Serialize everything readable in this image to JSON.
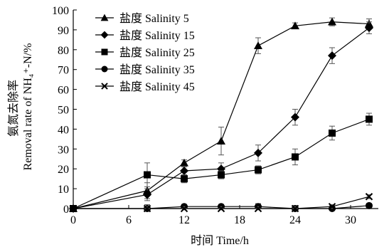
{
  "chart_data": {
    "type": "line",
    "title": "",
    "xlabel": "时间 Time/h",
    "ylabel_cn": "氨氮去除率",
    "ylabel_en": "Removal rate of NH₄⁺-N/%",
    "xlim": [
      0,
      33
    ],
    "ylim": [
      0,
      100
    ],
    "xticks": [
      0,
      6,
      12,
      18,
      24,
      30
    ],
    "yticks": [
      0,
      10,
      20,
      30,
      40,
      50,
      60,
      70,
      80,
      90,
      100
    ],
    "legend_position": "top-left",
    "x": [
      0,
      8,
      12,
      16,
      20,
      24,
      28,
      32
    ],
    "series": [
      {
        "name": "盐度 Salinity 5",
        "marker": "triangle",
        "values": [
          0,
          9,
          23,
          34,
          82,
          92,
          94,
          93
        ],
        "errors": [
          0,
          4,
          1.5,
          7,
          4,
          1.5,
          2,
          2.5
        ]
      },
      {
        "name": "盐度 Salinity 15",
        "marker": "diamond",
        "values": [
          0,
          7,
          19,
          20,
          28,
          46,
          77,
          91
        ],
        "errors": [
          0,
          3,
          2,
          3,
          4,
          4,
          4,
          3
        ]
      },
      {
        "name": "盐度 Salinity 25",
        "marker": "square",
        "values": [
          0,
          17,
          15,
          17,
          19.5,
          26,
          38,
          45
        ],
        "errors": [
          0,
          6,
          2,
          2,
          2,
          4,
          3.5,
          3
        ]
      },
      {
        "name": "盐度 Salinity 35",
        "marker": "circle",
        "values": [
          0,
          0,
          1,
          1,
          1,
          0,
          0,
          1.5
        ],
        "errors": [
          0,
          2,
          1,
          1,
          1.5,
          1.5,
          1.5,
          1
        ]
      },
      {
        "name": "盐度 Salinity 45",
        "marker": "cross",
        "values": [
          0,
          0,
          0,
          0,
          0,
          0,
          1,
          6
        ],
        "errors": [
          0,
          1,
          1,
          1,
          1,
          1,
          1,
          1
        ]
      }
    ]
  }
}
